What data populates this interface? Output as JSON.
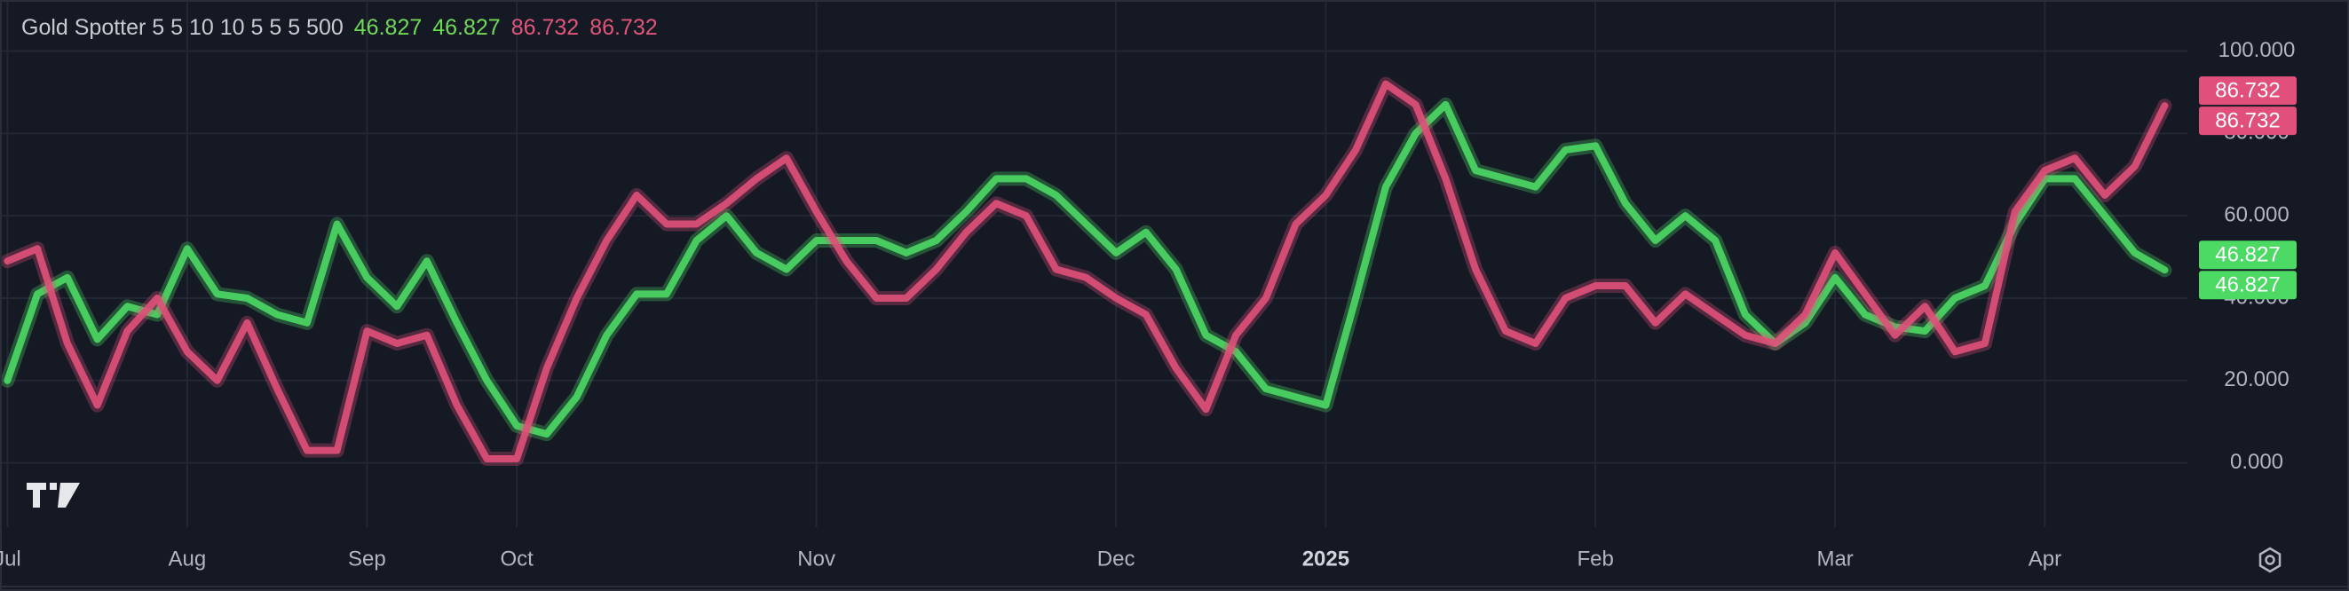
{
  "chart_data": {
    "type": "line",
    "title": "Gold Spotter 5 5 10 10 5 5 5 500",
    "categories": [
      "Jul",
      null,
      null,
      null,
      null,
      null,
      "Aug",
      null,
      null,
      null,
      null,
      null,
      "Sep",
      null,
      null,
      null,
      null,
      "Oct",
      null,
      null,
      null,
      null,
      null,
      null,
      null,
      null,
      null,
      "Nov",
      null,
      null,
      null,
      null,
      null,
      null,
      null,
      null,
      null,
      "Dec",
      null,
      null,
      null,
      null,
      null,
      null,
      "2025",
      null,
      null,
      null,
      null,
      null,
      null,
      null,
      null,
      "Feb",
      null,
      null,
      null,
      null,
      null,
      null,
      null,
      "Mar",
      null,
      null,
      null,
      null,
      null,
      null,
      "Apr",
      null,
      null,
      null,
      null
    ],
    "series": [
      {
        "color": "#4cd964",
        "values": [
          20,
          41,
          45,
          30,
          38,
          36,
          52,
          41,
          40,
          36,
          34,
          58,
          45,
          38,
          49,
          34,
          20,
          9,
          7,
          16,
          31,
          41,
          41,
          54,
          60,
          51,
          47,
          54,
          54,
          54,
          51,
          54,
          61,
          69,
          69,
          65,
          58,
          51,
          56,
          47,
          31,
          27,
          18,
          16,
          14,
          40,
          67,
          80,
          87,
          71,
          69,
          67,
          76,
          77,
          63,
          54,
          60,
          54,
          36,
          29,
          34,
          45,
          36,
          33,
          32,
          40,
          43,
          58,
          69,
          69,
          60,
          51,
          46.827
        ]
      },
      {
        "color": "#e0507a",
        "values": [
          49,
          52,
          29,
          14,
          32,
          40,
          27,
          20,
          34,
          18,
          3,
          3,
          32,
          29,
          31,
          14,
          1,
          1,
          23,
          40,
          54,
          65,
          58,
          58,
          63,
          69,
          74,
          61,
          49,
          40,
          40,
          47,
          56,
          63,
          60,
          47,
          45,
          40,
          36,
          23,
          13,
          31,
          40,
          58,
          65,
          76,
          92,
          87,
          69,
          47,
          32,
          29,
          40,
          43,
          43,
          34,
          41,
          36,
          31,
          29,
          36,
          51,
          41,
          31,
          38,
          27,
          29,
          61,
          71,
          74,
          65,
          72,
          86.732
        ]
      }
    ],
    "ylim": [
      -15.6,
      112.4
    ],
    "yticks": [
      {
        "value": 0,
        "label": "0.000"
      },
      {
        "value": 20,
        "label": "20.000"
      },
      {
        "value": 40,
        "label": "40.000"
      },
      {
        "value": 60,
        "label": "60.000"
      },
      {
        "value": 80,
        "label": "80.000"
      },
      {
        "value": 100,
        "label": "100.000"
      }
    ],
    "grid": true
  }
}
